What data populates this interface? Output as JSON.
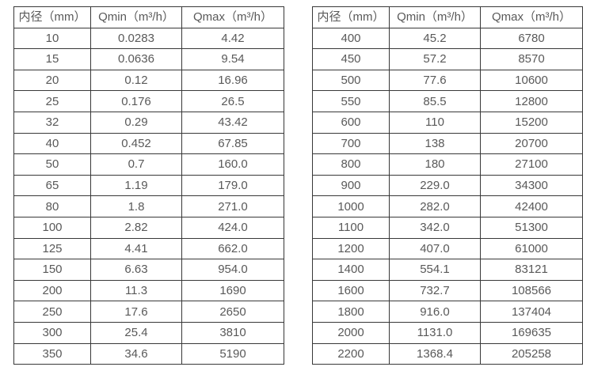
{
  "tables": [
    {
      "id": "small-diameters",
      "headers": [
        "内径（mm）",
        "Qmin（m³/h）",
        "Qmax（m³/h）"
      ],
      "rows": [
        [
          "10",
          "0.0283",
          "4.42"
        ],
        [
          "15",
          "0.0636",
          "9.54"
        ],
        [
          "20",
          "0.12",
          "16.96"
        ],
        [
          "25",
          "0.176",
          "26.5"
        ],
        [
          "32",
          "0.29",
          "43.42"
        ],
        [
          "40",
          "0.452",
          "67.85"
        ],
        [
          "50",
          "0.7",
          "160.0"
        ],
        [
          "65",
          "1.19",
          "179.0"
        ],
        [
          "80",
          "1.8",
          "271.0"
        ],
        [
          "100",
          "2.82",
          "424.0"
        ],
        [
          "125",
          "4.41",
          "662.0"
        ],
        [
          "150",
          "6.63",
          "954.0"
        ],
        [
          "200",
          "11.3",
          "1690"
        ],
        [
          "250",
          "17.6",
          "2650"
        ],
        [
          "300",
          "25.4",
          "3810"
        ],
        [
          "350",
          "34.6",
          "5190"
        ]
      ]
    },
    {
      "id": "large-diameters",
      "headers": [
        "内径（mm）",
        "Qmin（m³/h）",
        "Qmax（m³/h）"
      ],
      "rows": [
        [
          "400",
          "45.2",
          "6780"
        ],
        [
          "450",
          "57.2",
          "8570"
        ],
        [
          "500",
          "77.6",
          "10600"
        ],
        [
          "550",
          "85.5",
          "12800"
        ],
        [
          "600",
          "110",
          "15200"
        ],
        [
          "700",
          "138",
          "20700"
        ],
        [
          "800",
          "180",
          "27100"
        ],
        [
          "900",
          "229.0",
          "34300"
        ],
        [
          "1000",
          "282.0",
          "42400"
        ],
        [
          "1100",
          "342.0",
          "51300"
        ],
        [
          "1200",
          "407.0",
          "61000"
        ],
        [
          "1400",
          "554.1",
          "83121"
        ],
        [
          "1600",
          "732.7",
          "108566"
        ],
        [
          "1800",
          "916.0",
          "137404"
        ],
        [
          "2000",
          "1131.0",
          "169635"
        ],
        [
          "2200",
          "1368.4",
          "205258"
        ]
      ]
    }
  ],
  "colors": {
    "background": "#ffffff",
    "border": "#383838",
    "text": "#595959"
  }
}
